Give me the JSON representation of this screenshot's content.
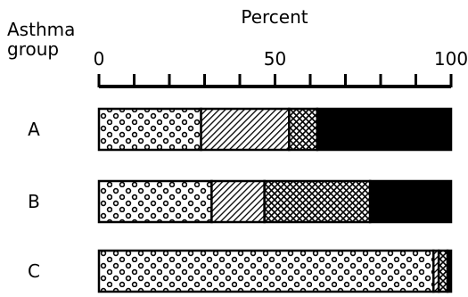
{
  "chart_data": {
    "type": "bar",
    "orientation": "horizontal",
    "stacked": true,
    "x_axis_title": "Percent",
    "y_axis_title_line1": "Asthma",
    "y_axis_title_line2": "group",
    "xlim": [
      0,
      100
    ],
    "x_tick_labels": [
      "0",
      "50",
      "100"
    ],
    "x_tick_values": [
      0,
      50,
      100
    ],
    "minor_tick_step": 10,
    "categories": [
      "A",
      "B",
      "C"
    ],
    "grid": false,
    "legend": "none",
    "series": [
      {
        "pattern": "circles",
        "values": [
          29,
          32,
          95
        ]
      },
      {
        "pattern": "diagonal-hatch",
        "values": [
          25,
          15,
          1.5
        ]
      },
      {
        "pattern": "crosshatch",
        "values": [
          8,
          30,
          2.5
        ]
      },
      {
        "pattern": "solid-black",
        "values": [
          38,
          23,
          1
        ]
      }
    ]
  }
}
